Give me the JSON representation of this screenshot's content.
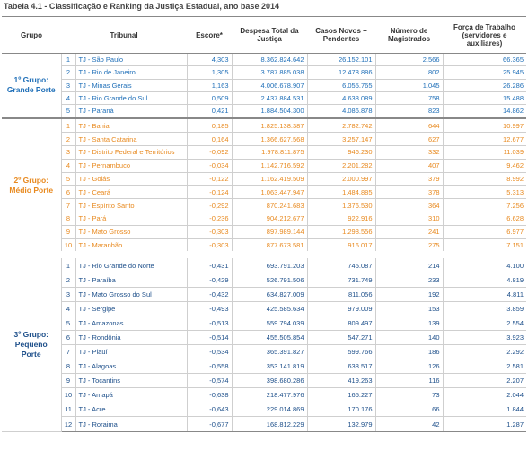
{
  "title": "Tabela 4.1 - Classificação e Ranking da Justiça Estadual, ano base 2014",
  "header": [
    "Grupo",
    "Tribunal",
    "Escore*",
    "Despesa Total da Justiça",
    "Casos Novos + Pendentes",
    "Número de Magistrados",
    "Força de Trabalho (servidores e auxiliares)"
  ],
  "groups": [
    {
      "label": [
        "1º Grupo:",
        "Grande Porte"
      ],
      "rows": [
        [
          "1",
          "TJ - São Paulo",
          "4,303",
          "8.362.824.642",
          "26.152.101",
          "2.566",
          "66.365"
        ],
        [
          "2",
          "TJ - Rio de Janeiro",
          "1,305",
          "3.787.885.038",
          "12.478.886",
          "802",
          "25.945"
        ],
        [
          "3",
          "TJ - Minas Gerais",
          "1,163",
          "4.006.678.907",
          "6.055.765",
          "1.045",
          "26.286"
        ],
        [
          "4",
          "TJ - Rio Grande do Sul",
          "0,509",
          "2.437.884.531",
          "4.638.089",
          "758",
          "15.488"
        ],
        [
          "5",
          "TJ - Paraná",
          "0,421",
          "1.884.504.300",
          "4.086.878",
          "823",
          "14.862"
        ]
      ]
    },
    {
      "label": [
        "2º Grupo:",
        "Médio Porte"
      ],
      "rows": [
        [
          "1",
          "TJ - Bahia",
          "0,185",
          "1.825.138.387",
          "2.782.742",
          "644",
          "10.997"
        ],
        [
          "2",
          "TJ - Santa Catarina",
          "0,164",
          "1.366.627.568",
          "3.257.147",
          "627",
          "12.677"
        ],
        [
          "3",
          "TJ - Distrito Federal e Territórios",
          "-0,092",
          "1.978.811.875",
          "946.230",
          "332",
          "11.039"
        ],
        [
          "4",
          "TJ - Pernambuco",
          "-0,034",
          "1.142.716.592",
          "2.201.282",
          "407",
          "9.462"
        ],
        [
          "5",
          "TJ - Goiás",
          "-0,122",
          "1.162.419.509",
          "2.000.997",
          "379",
          "8.992"
        ],
        [
          "6",
          "TJ - Ceará",
          "-0,124",
          "1.063.447.947",
          "1.484.885",
          "378",
          "5.313"
        ],
        [
          "7",
          "TJ - Espírito Santo",
          "-0,292",
          "870.241.683",
          "1.376.530",
          "364",
          "7.256"
        ],
        [
          "8",
          "TJ - Pará",
          "-0,236",
          "904.212.677",
          "922.916",
          "310",
          "6.628"
        ],
        [
          "9",
          "TJ - Mato Grosso",
          "-0,303",
          "897.989.144",
          "1.298.556",
          "241",
          "6.977"
        ],
        [
          "10",
          "TJ - Maranhão",
          "-0,303",
          "877.673.581",
          "916.017",
          "275",
          "7.151"
        ]
      ]
    },
    {
      "label": [
        "3º Grupo:",
        "Pequeno Porte"
      ],
      "rows": [
        [
          "1",
          "TJ - Rio Grande do Norte",
          "-0,431",
          "693.791.203",
          "745.087",
          "214",
          "4.100"
        ],
        [
          "2",
          "TJ - Paraíba",
          "-0,429",
          "526.791.506",
          "731.749",
          "233",
          "4.819"
        ],
        [
          "3",
          "TJ - Mato Grosso do Sul",
          "-0,432",
          "634.827.009",
          "811.056",
          "192",
          "4.811"
        ],
        [
          "4",
          "TJ - Sergipe",
          "-0,493",
          "425.585.634",
          "979.009",
          "153",
          "3.859"
        ],
        [
          "5",
          "TJ - Amazonas",
          "-0,513",
          "559.794.039",
          "809.497",
          "139",
          "2.554"
        ],
        [
          "6",
          "TJ - Rondônia",
          "-0,514",
          "455.505.854",
          "547.271",
          "140",
          "3.923"
        ],
        [
          "7",
          "TJ - Piauí",
          "-0,534",
          "365.391.827",
          "599.766",
          "186",
          "2.292"
        ],
        [
          "8",
          "TJ - Alagoas",
          "-0,558",
          "353.141.819",
          "638.517",
          "126",
          "2.581"
        ],
        [
          "9",
          "TJ - Tocantins",
          "-0,574",
          "398.680.286",
          "419.263",
          "116",
          "2.207"
        ],
        [
          "10",
          "TJ - Amapá",
          "-0,638",
          "218.477.976",
          "165.227",
          "73",
          "2.044"
        ],
        [
          "11",
          "TJ - Acre",
          "-0,643",
          "229.014.869",
          "170.176",
          "66",
          "1.844"
        ],
        [
          "12",
          "TJ - Roraima",
          "-0,677",
          "168.812.229",
          "132.979",
          "42",
          "1.287"
        ]
      ]
    }
  ]
}
